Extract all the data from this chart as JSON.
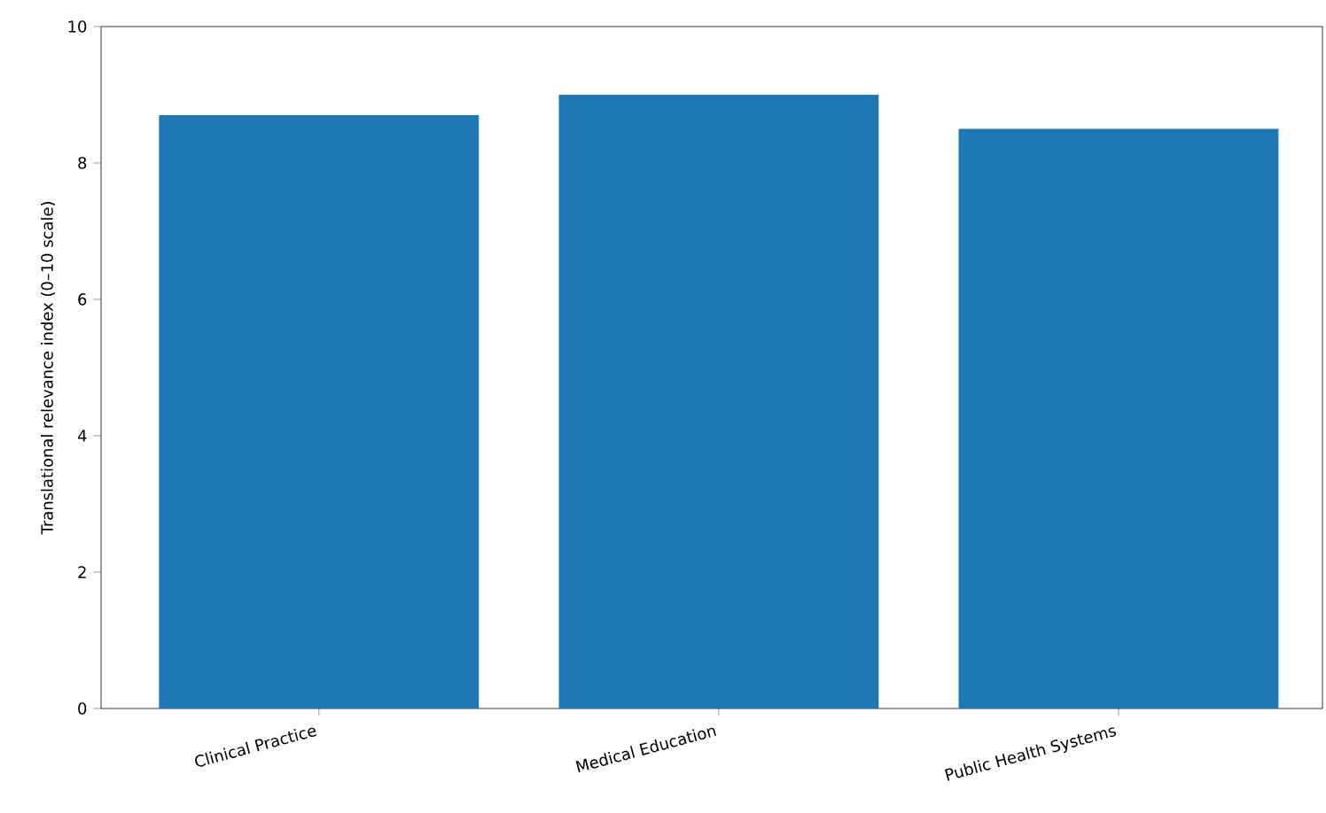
{
  "chart_data": {
    "type": "bar",
    "ylabel": "Translational relevance index (0–10 scale)",
    "categories": [
      "Clinical Practice",
      "Medical Education",
      "Public Health Systems"
    ],
    "values": [
      8.7,
      9.0,
      8.5
    ],
    "color": "#1f77b4",
    "ylim": [
      0,
      10
    ],
    "yticks": [
      0,
      2,
      4,
      6,
      8,
      10
    ]
  }
}
